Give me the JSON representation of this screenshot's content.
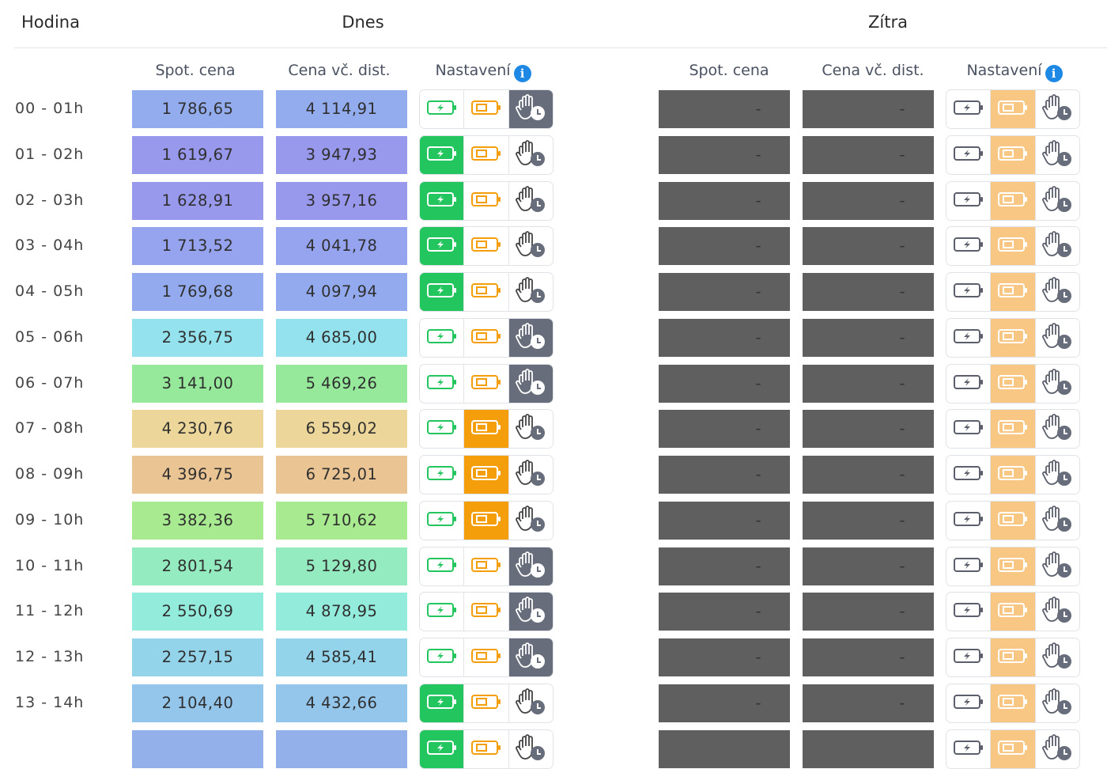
{
  "header": {
    "hour": "Hodina",
    "today": "Dnes",
    "tomorrow": "Zítra"
  },
  "columns": {
    "spot": "Spot. cena",
    "dist": "Cena vč. dist.",
    "settings": "Nastavení",
    "info_icon": "i"
  },
  "modes": [
    "charge-battery-icon",
    "discharge-battery-icon",
    "manual-hand-clock-icon"
  ],
  "colors": {
    "charge": "#22c55e",
    "discharge": "#f59e0b",
    "discharge_tomorrow": "#f9c784",
    "manual": "#676d7a",
    "tomorrow_cell": "#5f5f5f",
    "info": "#1e88e5"
  },
  "rows": [
    {
      "hour": "00 - 01h",
      "spot": "1 786,65",
      "dist": "4 114,91",
      "color": "#93acee",
      "today": "manual",
      "t_spot": "-",
      "t_dist": "-",
      "tomorrow": "discharge"
    },
    {
      "hour": "01 - 02h",
      "spot": "1 619,67",
      "dist": "3 947,93",
      "color": "#9898ec",
      "today": "charge",
      "t_spot": "-",
      "t_dist": "-",
      "tomorrow": "discharge"
    },
    {
      "hour": "02 - 03h",
      "spot": "1 628,91",
      "dist": "3 957,16",
      "color": "#9899ec",
      "today": "charge",
      "t_spot": "-",
      "t_dist": "-",
      "tomorrow": "discharge"
    },
    {
      "hour": "03 - 04h",
      "spot": "1 713,52",
      "dist": "4 041,78",
      "color": "#96a3ee",
      "today": "charge",
      "t_spot": "-",
      "t_dist": "-",
      "tomorrow": "discharge"
    },
    {
      "hour": "04 - 05h",
      "spot": "1 769,68",
      "dist": "4 097,94",
      "color": "#93abee",
      "today": "charge",
      "t_spot": "-",
      "t_dist": "-",
      "tomorrow": "discharge"
    },
    {
      "hour": "05 - 06h",
      "spot": "2 356,75",
      "dist": "4 685,00",
      "color": "#93e2ee",
      "today": "manual",
      "t_spot": "-",
      "t_dist": "-",
      "tomorrow": "discharge"
    },
    {
      "hour": "06 - 07h",
      "spot": "3 141,00",
      "dist": "5 469,26",
      "color": "#96e99b",
      "today": "manual",
      "t_spot": "-",
      "t_dist": "-",
      "tomorrow": "discharge"
    },
    {
      "hour": "07 - 08h",
      "spot": "4 230,76",
      "dist": "6 559,02",
      "color": "#ecd699",
      "today": "discharge",
      "t_spot": "-",
      "t_dist": "-",
      "tomorrow": "discharge"
    },
    {
      "hour": "08 - 09h",
      "spot": "4 396,75",
      "dist": "6 725,01",
      "color": "#ebc494",
      "today": "discharge",
      "t_spot": "-",
      "t_dist": "-",
      "tomorrow": "discharge"
    },
    {
      "hour": "09 - 10h",
      "spot": "3 382,36",
      "dist": "5 710,62",
      "color": "#a7ea8f",
      "today": "discharge",
      "t_spot": "-",
      "t_dist": "-",
      "tomorrow": "discharge"
    },
    {
      "hour": "10 - 11h",
      "spot": "2 801,54",
      "dist": "5 129,80",
      "color": "#94ebbf",
      "today": "manual",
      "t_spot": "-",
      "t_dist": "-",
      "tomorrow": "discharge"
    },
    {
      "hour": "11 - 12h",
      "spot": "2 550,69",
      "dist": "4 878,95",
      "color": "#93ebdc",
      "today": "manual",
      "t_spot": "-",
      "t_dist": "-",
      "tomorrow": "discharge"
    },
    {
      "hour": "12 - 13h",
      "spot": "2 257,15",
      "dist": "4 585,41",
      "color": "#93d4eb",
      "today": "manual",
      "t_spot": "-",
      "t_dist": "-",
      "tomorrow": "discharge"
    },
    {
      "hour": "13 - 14h",
      "spot": "2 104,40",
      "dist": "4 432,66",
      "color": "#94c6ec",
      "today": "charge",
      "t_spot": "-",
      "t_dist": "-",
      "tomorrow": "discharge"
    },
    {
      "hour": "",
      "spot": "",
      "dist": "",
      "color": "#93b0ea",
      "today": "charge",
      "t_spot": "",
      "t_dist": "",
      "tomorrow": "discharge"
    }
  ]
}
